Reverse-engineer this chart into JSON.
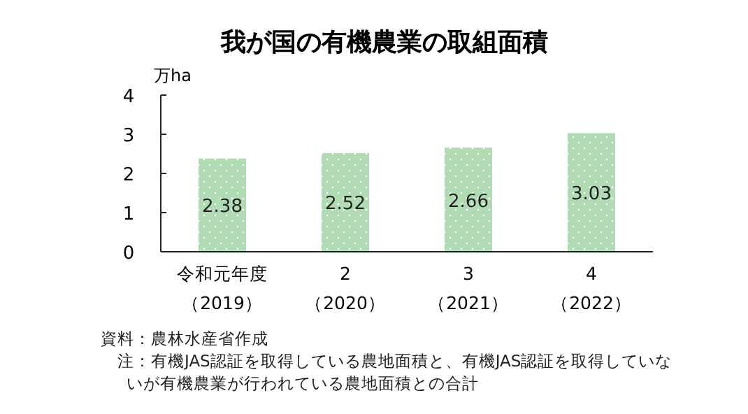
{
  "chart_data": {
    "type": "bar",
    "title": "我が国の有機農業の取組面積",
    "ylabel": "万ha",
    "categories": [
      "令和元年度（2019）",
      "2（2020）",
      "3（2021）",
      "4（2022）"
    ],
    "values": [
      2.38,
      2.52,
      2.66,
      3.03
    ],
    "color": "#afdcb3",
    "ylim": [
      0,
      4
    ],
    "yticks": [
      0,
      1,
      2,
      3,
      4
    ],
    "grid": false,
    "data_labels": true,
    "annotations": [
      "資料：農林水産省作成",
      "　注：有機JAS認証を取得している農地面積と、有機JAS認証を取得していないが有機農業が行われている農地面積との合計"
    ]
  }
}
